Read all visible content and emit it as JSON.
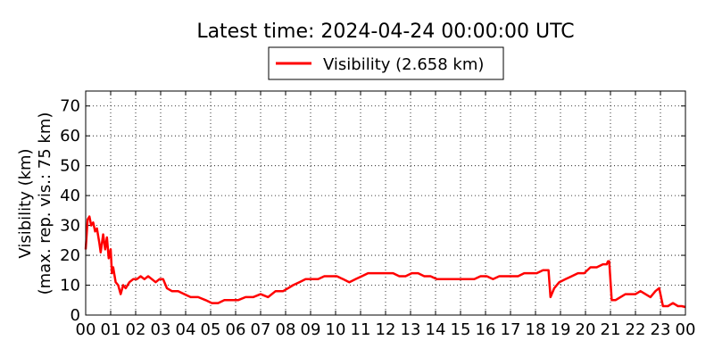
{
  "chart_data": {
    "type": "line",
    "title": "Latest time: 2024-04-24 00:00:00 UTC",
    "ylabel_line1": "Visibility (km)",
    "ylabel_line2": "(max. rep. vis.: 75 km)",
    "xlabel": "",
    "xlim": [
      0,
      24
    ],
    "ylim": [
      0,
      75
    ],
    "yticks": [
      0,
      10,
      20,
      30,
      40,
      50,
      60,
      70
    ],
    "xtick_labels": [
      "00",
      "01",
      "02",
      "03",
      "04",
      "05",
      "06",
      "07",
      "08",
      "09",
      "10",
      "11",
      "12",
      "13",
      "14",
      "15",
      "16",
      "17",
      "18",
      "19",
      "20",
      "21",
      "22",
      "23",
      "00"
    ],
    "grid": true,
    "legend_position": "top-center",
    "series": [
      {
        "name": "Visibility (2.658 km)",
        "color": "#ff0000",
        "x": [
          0.0,
          0.08,
          0.15,
          0.22,
          0.3,
          0.38,
          0.45,
          0.55,
          0.6,
          0.7,
          0.78,
          0.85,
          0.92,
          1.0,
          1.05,
          1.1,
          1.2,
          1.3,
          1.4,
          1.5,
          1.6,
          1.75,
          1.9,
          2.05,
          2.2,
          2.35,
          2.5,
          2.65,
          2.8,
          2.95,
          3.1,
          3.25,
          3.45,
          3.7,
          3.95,
          4.2,
          4.5,
          4.8,
          5.05,
          5.3,
          5.55,
          5.8,
          6.1,
          6.4,
          6.7,
          7.0,
          7.3,
          7.6,
          7.9,
          8.1,
          8.3,
          8.55,
          8.8,
          9.05,
          9.3,
          9.55,
          9.8,
          10.05,
          10.3,
          10.55,
          10.8,
          11.05,
          11.3,
          11.55,
          11.8,
          12.05,
          12.3,
          12.55,
          12.8,
          13.05,
          13.3,
          13.55,
          13.8,
          14.05,
          14.3,
          14.55,
          14.8,
          15.05,
          15.3,
          15.55,
          15.8,
          16.05,
          16.3,
          16.55,
          16.8,
          17.05,
          17.3,
          17.55,
          17.8,
          18.05,
          18.3,
          18.45,
          18.52,
          18.6,
          18.75,
          18.95,
          19.2,
          19.45,
          19.7,
          19.95,
          20.2,
          20.45,
          20.7,
          20.85,
          20.9,
          20.95,
          21.05,
          21.2,
          21.4,
          21.6,
          21.8,
          22.0,
          22.2,
          22.4,
          22.6,
          22.8,
          22.95,
          23.1,
          23.3,
          23.5,
          23.7,
          23.85,
          24.0
        ],
        "values": [
          22,
          32,
          33,
          30,
          31,
          28,
          29,
          24,
          21,
          27,
          22,
          26,
          19,
          22,
          14,
          16,
          11,
          10,
          7,
          10,
          9,
          11,
          12,
          12,
          13,
          12,
          13,
          12,
          11,
          12,
          12,
          9,
          8,
          8,
          7,
          6,
          6,
          5,
          4,
          4,
          5,
          5,
          5,
          6,
          6,
          7,
          6,
          8,
          8,
          9,
          10,
          11,
          12,
          12,
          12,
          13,
          13,
          13,
          12,
          11,
          12,
          13,
          14,
          14,
          14,
          14,
          14,
          13,
          13,
          14,
          14,
          13,
          13,
          12,
          12,
          12,
          12,
          12,
          12,
          12,
          13,
          13,
          12,
          13,
          13,
          13,
          13,
          14,
          14,
          14,
          15,
          15,
          15,
          6,
          9,
          11,
          12,
          13,
          14,
          14,
          16,
          16,
          17,
          17,
          18,
          18,
          5,
          5,
          6,
          7,
          7,
          7,
          8,
          7,
          6,
          8,
          9,
          3,
          3,
          4,
          3,
          3,
          2.7
        ]
      }
    ]
  }
}
